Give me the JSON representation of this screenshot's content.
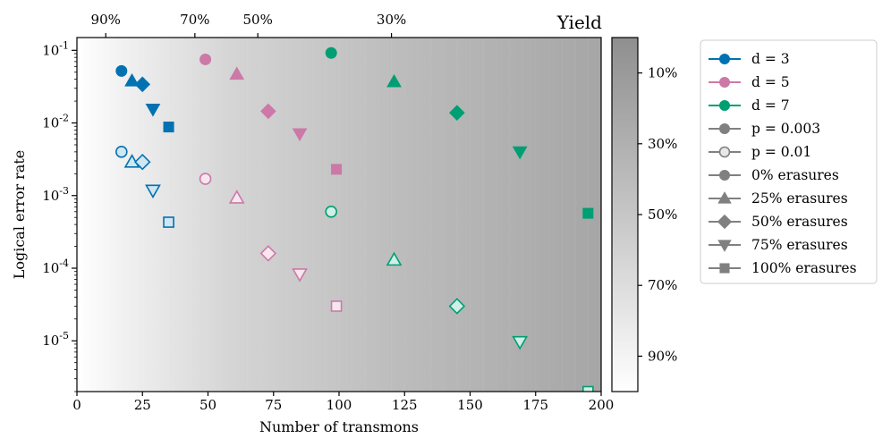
{
  "chart_data": {
    "type": "scatter",
    "xlabel": "Number of transmons",
    "ylabel": "Logical error rate",
    "xlim": [
      0,
      200
    ],
    "ylim": [
      2e-06,
      0.15
    ],
    "yscale": "log",
    "x_ticks": [
      "0",
      "25",
      "50",
      "75",
      "100",
      "125",
      "150",
      "175",
      "200"
    ],
    "y_ticks": [
      "10^-1",
      "10^-2",
      "10^-3",
      "10^-4",
      "10^-5"
    ],
    "top_axis": {
      "ticks": [
        {
          "x": 11,
          "label": "90%"
        },
        {
          "x": 45,
          "label": "70%"
        },
        {
          "x": 69,
          "label": "50%"
        },
        {
          "x": 120,
          "label": "30%"
        }
      ]
    },
    "background_gradient": "yield decreasing with number of transmons (white to gray)",
    "colorbar": {
      "title": "Yield",
      "tick_labels": [
        "10%",
        "30%",
        "50%",
        "70%",
        "90%"
      ],
      "tick_values": [
        0.1,
        0.3,
        0.5,
        0.7,
        0.9
      ],
      "range": [
        0.0,
        1.0
      ],
      "colormap": "gray, dark at top to white at bottom"
    },
    "legend": {
      "placement": "outside-right",
      "entries": [
        {
          "label": "d = 3",
          "marker": "circle",
          "color": "#0072b2",
          "filled": true
        },
        {
          "label": "d = 5",
          "marker": "circle",
          "color": "#cc79a7",
          "filled": true
        },
        {
          "label": "d = 7",
          "marker": "circle",
          "color": "#009e73",
          "filled": true
        },
        {
          "label": "p = 0.003",
          "marker": "circle",
          "color": "#808080",
          "filled": true
        },
        {
          "label": "p = 0.01",
          "marker": "circle",
          "color": "#808080",
          "filled": false
        },
        {
          "label": "0% erasures",
          "marker": "circle",
          "color": "#808080",
          "filled": true
        },
        {
          "label": "25% erasures",
          "marker": "triangle-up",
          "color": "#808080",
          "filled": true
        },
        {
          "label": "50% erasures",
          "marker": "diamond",
          "color": "#808080",
          "filled": true
        },
        {
          "label": "75% erasures",
          "marker": "triangle-down",
          "color": "#808080",
          "filled": true
        },
        {
          "label": "100% erasures",
          "marker": "square",
          "color": "#808080",
          "filled": true
        }
      ]
    },
    "series": [
      {
        "distance": 3,
        "p": 0.003,
        "color": "#0072b2",
        "filled": true,
        "points": [
          {
            "x": 17,
            "y": 0.052,
            "marker": "circle"
          },
          {
            "x": 21,
            "y": 0.038,
            "marker": "triangle-up"
          },
          {
            "x": 25,
            "y": 0.034,
            "marker": "diamond"
          },
          {
            "x": 29,
            "y": 0.0155,
            "marker": "triangle-down"
          },
          {
            "x": 35,
            "y": 0.0088,
            "marker": "square"
          }
        ]
      },
      {
        "distance": 3,
        "p": 0.01,
        "color": "#0072b2",
        "filled": false,
        "points": [
          {
            "x": 17,
            "y": 0.004,
            "marker": "circle"
          },
          {
            "x": 21,
            "y": 0.0029,
            "marker": "triangle-up"
          },
          {
            "x": 25,
            "y": 0.0029,
            "marker": "diamond"
          },
          {
            "x": 29,
            "y": 0.00118,
            "marker": "triangle-down"
          },
          {
            "x": 35,
            "y": 0.00043,
            "marker": "square"
          }
        ]
      },
      {
        "distance": 5,
        "p": 0.003,
        "color": "#cc79a7",
        "filled": true,
        "points": [
          {
            "x": 49,
            "y": 0.075,
            "marker": "circle"
          },
          {
            "x": 61,
            "y": 0.047,
            "marker": "triangle-up"
          },
          {
            "x": 73,
            "y": 0.0145,
            "marker": "diamond"
          },
          {
            "x": 85,
            "y": 0.0071,
            "marker": "triangle-down"
          },
          {
            "x": 99,
            "y": 0.0023,
            "marker": "square"
          }
        ]
      },
      {
        "distance": 5,
        "p": 0.01,
        "color": "#cc79a7",
        "filled": false,
        "points": [
          {
            "x": 49,
            "y": 0.0017,
            "marker": "circle"
          },
          {
            "x": 61,
            "y": 0.00093,
            "marker": "triangle-up"
          },
          {
            "x": 73,
            "y": 0.00016,
            "marker": "diamond"
          },
          {
            "x": 85,
            "y": 8.3e-05,
            "marker": "triangle-down"
          },
          {
            "x": 99,
            "y": 3e-05,
            "marker": "square"
          }
        ]
      },
      {
        "distance": 7,
        "p": 0.003,
        "color": "#009e73",
        "filled": true,
        "points": [
          {
            "x": 97,
            "y": 0.092,
            "marker": "circle"
          },
          {
            "x": 121,
            "y": 0.037,
            "marker": "triangle-up"
          },
          {
            "x": 145,
            "y": 0.0138,
            "marker": "diamond"
          },
          {
            "x": 169,
            "y": 0.004,
            "marker": "triangle-down"
          },
          {
            "x": 195,
            "y": 0.00057,
            "marker": "square"
          }
        ]
      },
      {
        "distance": 7,
        "p": 0.01,
        "color": "#009e73",
        "filled": false,
        "points": [
          {
            "x": 97,
            "y": 0.0006,
            "marker": "circle"
          },
          {
            "x": 121,
            "y": 0.00013,
            "marker": "triangle-up"
          },
          {
            "x": 145,
            "y": 3e-05,
            "marker": "diamond"
          },
          {
            "x": 169,
            "y": 9.7e-06,
            "marker": "triangle-down"
          },
          {
            "x": 195,
            "y": 2e-06,
            "marker": "square"
          }
        ]
      }
    ]
  }
}
